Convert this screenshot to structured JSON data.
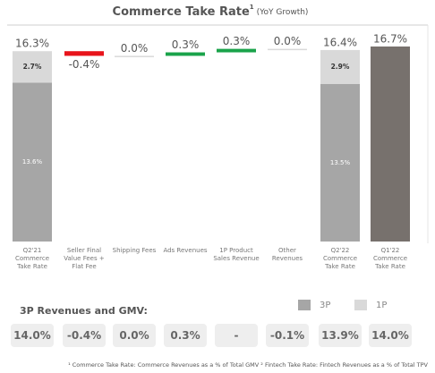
{
  "chart_data": {
    "type": "waterfall",
    "title": "Commerce Take Rate",
    "title_superscript": "1",
    "subtitle": "(YoY Growth)",
    "categories": [
      "Q2'21 Commerce Take Rate",
      "Seller Final Value Fees + Flat Fee",
      "Shipping Fees",
      "Ads Revenues",
      "1P Product Sales Revenue",
      "Other Revenues",
      "Q2'22 Commerce Take Rate",
      "Q1'22 Commerce Take Rate"
    ],
    "values": [
      16.3,
      -0.4,
      0.0,
      0.3,
      0.3,
      0.0,
      16.4,
      16.7
    ],
    "value_labels": [
      "16.3%",
      "-0.4%",
      "0.0%",
      "0.3%",
      "0.3%",
      "0.0%",
      "16.4%",
      "16.7%"
    ],
    "kinds": [
      "total",
      "change",
      "change",
      "change",
      "change",
      "change",
      "total",
      "total"
    ],
    "stacks": [
      {
        "name": "3P",
        "color": "#a6a6a6",
        "values": [
          13.6,
          null,
          null,
          null,
          null,
          null,
          13.5,
          null
        ],
        "value_labels": [
          "13.6%",
          null,
          null,
          null,
          null,
          null,
          "13.5%",
          null
        ]
      },
      {
        "name": "1P",
        "color": "#d9d9d9",
        "values": [
          2.7,
          null,
          null,
          null,
          null,
          null,
          2.9,
          null
        ],
        "value_labels": [
          "2.7%",
          null,
          null,
          null,
          null,
          null,
          "2.9%",
          null
        ]
      }
    ],
    "total_color": "#77716d",
    "increase_color": "#1aa34a",
    "decrease_color": "#e8141b",
    "zero_color": "#d9d9d9",
    "gmv_title": "3P Revenues and GMV:",
    "gmv_row": [
      "14.0%",
      "-0.4%",
      "0.0%",
      "0.3%",
      "-",
      "-0.1%",
      "13.9%",
      "14.0%"
    ],
    "footnote": "¹ Commerce Take Rate: Commerce Revenues as a % of Total GMV ² Fintech Take Rate: Fintech Revenues as a % of Total TPV"
  }
}
